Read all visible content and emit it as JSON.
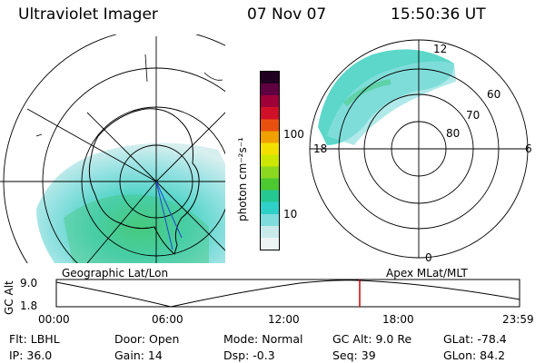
{
  "header": {
    "instrument": "Ultraviolet Imager",
    "date": "07 Nov 07",
    "time": "15:50:36 UT"
  },
  "left_panel": {
    "caption": "Geographic Lat/Lon"
  },
  "right_panel": {
    "caption": "Apex MLat/MLT",
    "mlt_labels": {
      "top": "12",
      "left": "18",
      "right": "6",
      "bottom": "0"
    },
    "mlat_labels": [
      "60",
      "70",
      "80"
    ]
  },
  "colorbar": {
    "unit_label": "photon cm⁻²s⁻¹",
    "ticks": [
      "100",
      "10"
    ],
    "colors": [
      "#eef4f4",
      "#c8eaea",
      "#7fdcdc",
      "#2fd0c8",
      "#24c890",
      "#4cc830",
      "#8cd820",
      "#cce800",
      "#f4e000",
      "#f0a000",
      "#e85010",
      "#d01028",
      "#a00038",
      "#600040",
      "#200020"
    ]
  },
  "altitude_plot": {
    "axis_label": "GC Alt",
    "y_ticks": [
      "9.0",
      "1.8"
    ],
    "x_ticks": [
      "00:00",
      "06:00",
      "12:00",
      "18:00",
      "23:59"
    ],
    "current_marker_color": "#cc0000"
  },
  "info": {
    "flt": "Flt: LBHL",
    "ip": "IP: 36.0",
    "door": "Door: Open",
    "gain": "Gain: 14",
    "mode": "Mode: Normal",
    "dsp": "Dsp:    -0.3",
    "gcalt": "GC Alt: 9.0 Re",
    "seq": "Seq: 39",
    "glat": "GLat:  -78.4",
    "glon": "GLon:   84.2"
  }
}
